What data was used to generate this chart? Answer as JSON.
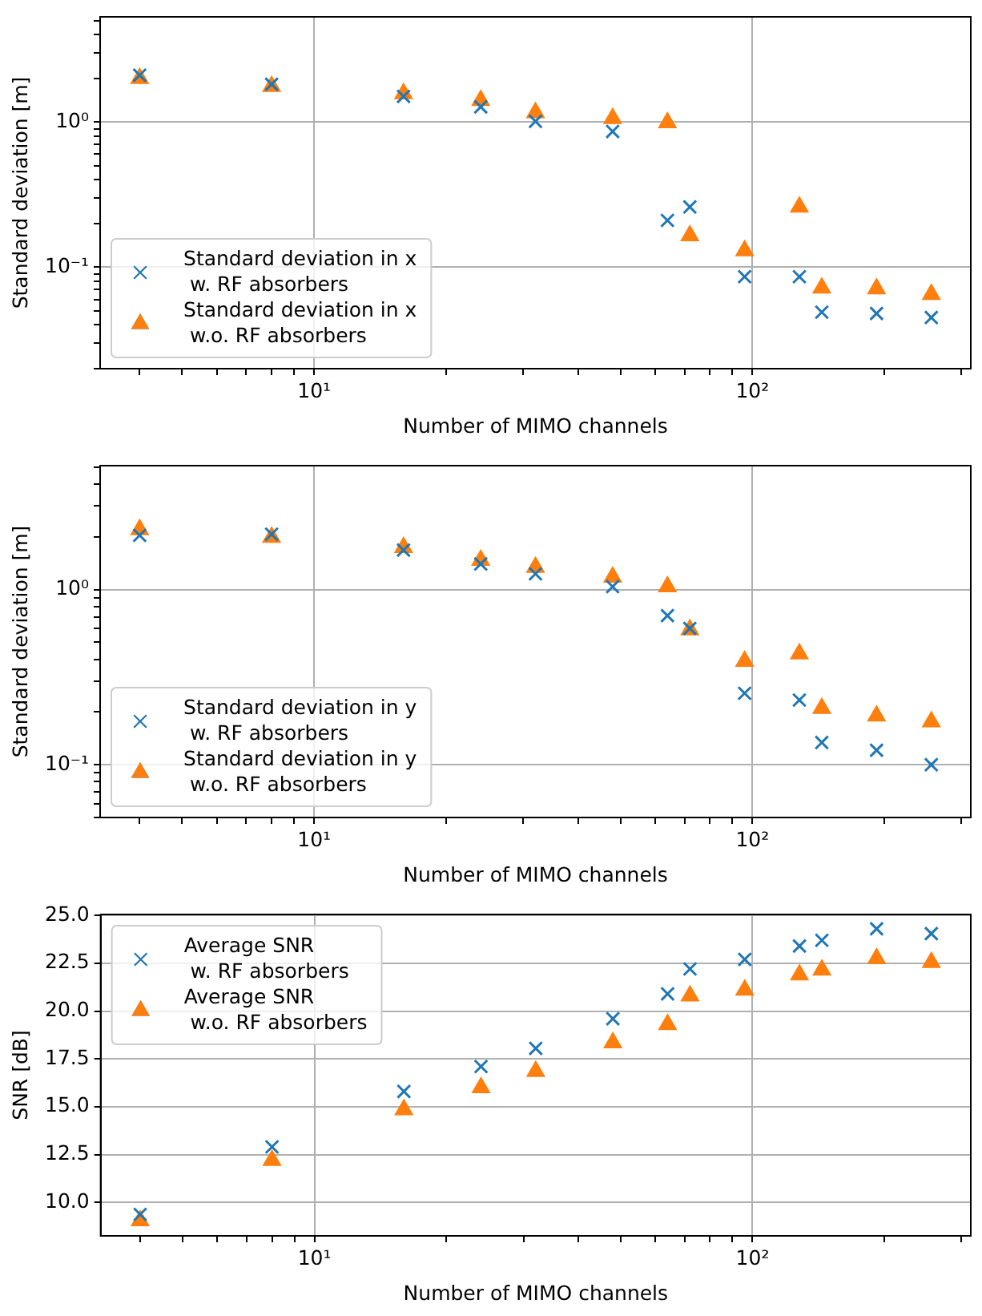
{
  "chart_data": [
    {
      "type": "scatter",
      "xlabel": "Number of MIMO channels",
      "ylabel": "Standard deviation [m]",
      "log": "xy",
      "grid": true,
      "legend": "bottom left",
      "xlim": [
        3.25,
        315
      ],
      "ylim": [
        0.02,
        5.3
      ],
      "xticks": [
        {
          "value": 4,
          "label": null
        },
        {
          "value": 5,
          "label": null
        },
        {
          "value": 6,
          "label": null
        },
        {
          "value": 7,
          "label": null
        },
        {
          "value": 8,
          "label": null
        },
        {
          "value": 9,
          "label": null
        },
        {
          "value": 10,
          "label": "10¹"
        },
        {
          "value": 20,
          "label": null
        },
        {
          "value": 30,
          "label": null
        },
        {
          "value": 40,
          "label": null
        },
        {
          "value": 50,
          "label": null
        },
        {
          "value": 60,
          "label": null
        },
        {
          "value": 70,
          "label": null
        },
        {
          "value": 80,
          "label": null
        },
        {
          "value": 90,
          "label": null
        },
        {
          "value": 100,
          "label": "10²"
        },
        {
          "value": 200,
          "label": null
        },
        {
          "value": 300,
          "label": null
        }
      ],
      "yticks": [
        {
          "value": 0.02,
          "label": null
        },
        {
          "value": 0.03,
          "label": null
        },
        {
          "value": 0.04,
          "label": null
        },
        {
          "value": 0.05,
          "label": null
        },
        {
          "value": 0.06,
          "label": null
        },
        {
          "value": 0.07,
          "label": null
        },
        {
          "value": 0.08,
          "label": null
        },
        {
          "value": 0.09,
          "label": null
        },
        {
          "value": 0.1,
          "label": "10⁻¹"
        },
        {
          "value": 0.2,
          "label": null
        },
        {
          "value": 0.3,
          "label": null
        },
        {
          "value": 0.4,
          "label": null
        },
        {
          "value": 0.5,
          "label": null
        },
        {
          "value": 0.6,
          "label": null
        },
        {
          "value": 0.7,
          "label": null
        },
        {
          "value": 0.8,
          "label": null
        },
        {
          "value": 0.9,
          "label": null
        },
        {
          "value": 1,
          "label": "10⁰"
        },
        {
          "value": 2,
          "label": null
        },
        {
          "value": 3,
          "label": null
        },
        {
          "value": 4,
          "label": null
        },
        {
          "value": 5,
          "label": null
        }
      ],
      "x": [
        4,
        8,
        16,
        24,
        32,
        48,
        64,
        72,
        96,
        128,
        144,
        192,
        256
      ],
      "series": [
        {
          "name": "Standard deviation in x\n w. RF absorbers",
          "color": "#1f77b4",
          "marker": "cross",
          "values": [
            2.1,
            1.82,
            1.5,
            1.27,
            1.01,
            0.86,
            0.21,
            0.26,
            0.086,
            0.086,
            0.049,
            0.048,
            0.045
          ]
        },
        {
          "name": "Standard deviation in x\n w.o. RF absorbers",
          "color": "#ff7f0e",
          "marker": "triangle",
          "values": [
            2.0,
            1.76,
            1.57,
            1.41,
            1.16,
            1.06,
            0.99,
            0.165,
            0.13,
            0.26,
            0.072,
            0.071,
            0.065
          ]
        }
      ]
    },
    {
      "type": "scatter",
      "xlabel": "Number of MIMO channels",
      "ylabel": "Standard deviation [m]",
      "log": "xy",
      "grid": true,
      "legend": "bottom left",
      "xlim": [
        3.25,
        315
      ],
      "ylim": [
        0.05,
        5.1
      ],
      "xticks": [
        {
          "value": 4,
          "label": null
        },
        {
          "value": 5,
          "label": null
        },
        {
          "value": 6,
          "label": null
        },
        {
          "value": 7,
          "label": null
        },
        {
          "value": 8,
          "label": null
        },
        {
          "value": 9,
          "label": null
        },
        {
          "value": 10,
          "label": "10¹"
        },
        {
          "value": 20,
          "label": null
        },
        {
          "value": 30,
          "label": null
        },
        {
          "value": 40,
          "label": null
        },
        {
          "value": 50,
          "label": null
        },
        {
          "value": 60,
          "label": null
        },
        {
          "value": 70,
          "label": null
        },
        {
          "value": 80,
          "label": null
        },
        {
          "value": 90,
          "label": null
        },
        {
          "value": 100,
          "label": "10²"
        },
        {
          "value": 200,
          "label": null
        },
        {
          "value": 300,
          "label": null
        }
      ],
      "yticks": [
        {
          "value": 0.05,
          "label": null
        },
        {
          "value": 0.06,
          "label": null
        },
        {
          "value": 0.07,
          "label": null
        },
        {
          "value": 0.08,
          "label": null
        },
        {
          "value": 0.09,
          "label": null
        },
        {
          "value": 0.1,
          "label": "10⁻¹"
        },
        {
          "value": 0.2,
          "label": null
        },
        {
          "value": 0.3,
          "label": null
        },
        {
          "value": 0.4,
          "label": null
        },
        {
          "value": 0.5,
          "label": null
        },
        {
          "value": 0.6,
          "label": null
        },
        {
          "value": 0.7,
          "label": null
        },
        {
          "value": 0.8,
          "label": null
        },
        {
          "value": 0.9,
          "label": null
        },
        {
          "value": 1,
          "label": "10⁰"
        },
        {
          "value": 2,
          "label": null
        },
        {
          "value": 3,
          "label": null
        },
        {
          "value": 4,
          "label": null
        },
        {
          "value": 5,
          "label": null
        }
      ],
      "x": [
        4,
        8,
        16,
        24,
        32,
        48,
        64,
        72,
        96,
        128,
        144,
        192,
        256
      ],
      "series": [
        {
          "name": "Standard deviation in y\n w. RF absorbers",
          "color": "#1f77b4",
          "marker": "cross",
          "values": [
            2.04,
            2.07,
            1.68,
            1.4,
            1.23,
            1.04,
            0.71,
            0.6,
            0.256,
            0.234,
            0.134,
            0.121,
            0.1
          ]
        },
        {
          "name": "Standard deviation in y\n w.o. RF absorbers",
          "color": "#ff7f0e",
          "marker": "triangle",
          "values": [
            2.2,
            1.99,
            1.74,
            1.47,
            1.34,
            1.18,
            1.04,
            0.59,
            0.39,
            0.43,
            0.21,
            0.19,
            0.176
          ]
        }
      ]
    },
    {
      "type": "scatter",
      "xlabel": "Number of MIMO channels",
      "ylabel": "SNR [dB]",
      "log": "x",
      "grid": true,
      "legend": "top left",
      "xlim": [
        3.25,
        315
      ],
      "ylim": [
        8.25,
        25.05
      ],
      "xticks": [
        {
          "value": 4,
          "label": null
        },
        {
          "value": 5,
          "label": null
        },
        {
          "value": 6,
          "label": null
        },
        {
          "value": 7,
          "label": null
        },
        {
          "value": 8,
          "label": null
        },
        {
          "value": 9,
          "label": null
        },
        {
          "value": 10,
          "label": "10¹"
        },
        {
          "value": 20,
          "label": null
        },
        {
          "value": 30,
          "label": null
        },
        {
          "value": 40,
          "label": null
        },
        {
          "value": 50,
          "label": null
        },
        {
          "value": 60,
          "label": null
        },
        {
          "value": 70,
          "label": null
        },
        {
          "value": 80,
          "label": null
        },
        {
          "value": 90,
          "label": null
        },
        {
          "value": 100,
          "label": "10²"
        },
        {
          "value": 200,
          "label": null
        },
        {
          "value": 300,
          "label": null
        }
      ],
      "yticks": [
        {
          "value": 10,
          "label": "10.0"
        },
        12.5,
        {
          "value": 15,
          "label": "15.0"
        },
        17.5,
        {
          "value": 20,
          "label": "20.0"
        },
        22.5,
        {
          "value": 25,
          "label": "25.0"
        }
      ],
      "x": [
        4,
        8,
        16,
        24,
        32,
        48,
        64,
        72,
        96,
        128,
        144,
        192,
        256
      ],
      "series": [
        {
          "name": "Average SNR\n w. RF absorbers",
          "color": "#1f77b4",
          "marker": "cross",
          "values": [
            9.37,
            12.9,
            15.8,
            17.1,
            18.05,
            19.6,
            20.9,
            22.2,
            22.7,
            23.4,
            23.7,
            24.3,
            24.05
          ]
        },
        {
          "name": "Average SNR\n w.o. RF absorbers",
          "color": "#ff7f0e",
          "marker": "triangle",
          "values": [
            9.05,
            12.2,
            14.85,
            16.0,
            16.85,
            18.35,
            19.3,
            20.8,
            21.1,
            21.9,
            22.15,
            22.75,
            22.55
          ]
        }
      ]
    }
  ]
}
